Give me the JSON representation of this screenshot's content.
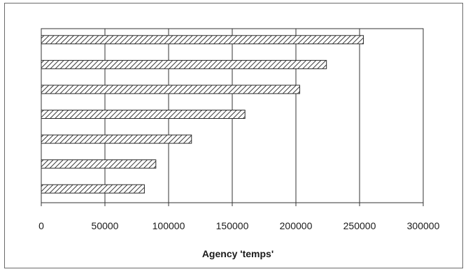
{
  "chart_data": {
    "type": "bar",
    "orientation": "horizontal",
    "xlabel": "Agency 'temps'",
    "xlim": [
      0,
      300000
    ],
    "xticks": [
      0,
      50000,
      100000,
      150000,
      200000,
      250000,
      300000
    ],
    "xtick_labels": [
      "0",
      "50000",
      "100000",
      "150000",
      "200000",
      "250000",
      "300000"
    ],
    "values": [
      253000,
      224000,
      203000,
      160000,
      118000,
      90000,
      81000
    ],
    "grid": "vertical",
    "bar_pattern": "diagonal-hatch",
    "colors": {
      "bar_fill": "#ffffff",
      "hatch": "#3a3a3a",
      "grid": "#333333",
      "frame": "#6a6a6a"
    }
  }
}
